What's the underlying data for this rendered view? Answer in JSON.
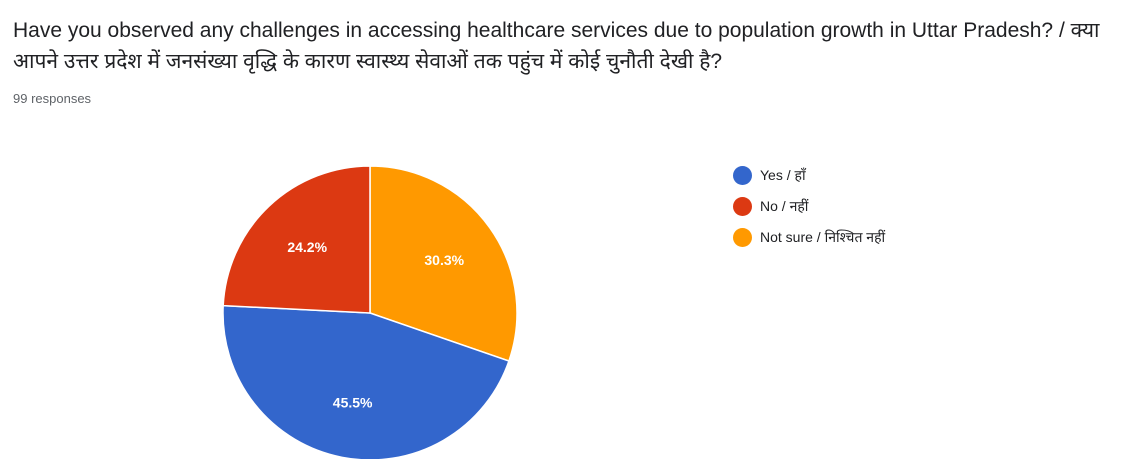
{
  "question": {
    "text": "Have you observed any challenges in accessing healthcare services due to population growth in Uttar Pradesh? / क्या आपने उत्तर प्रदेश में जनसंख्या वृद्धि के कारण स्वास्थ्य सेवाओं तक पहुंच में कोई चुनौती देखी है?",
    "responses": "99 responses"
  },
  "chart_data": {
    "type": "pie",
    "categories": [
      "Yes / हाँ",
      "No / नहीं",
      "Not sure / निश्चित नहीं"
    ],
    "values": [
      45.5,
      24.2,
      30.3
    ],
    "labels": [
      "45.5%",
      "24.2%",
      "30.3%"
    ],
    "colors": [
      "#3366cc",
      "#dc3912",
      "#ff9900"
    ],
    "legend_position": "right"
  }
}
